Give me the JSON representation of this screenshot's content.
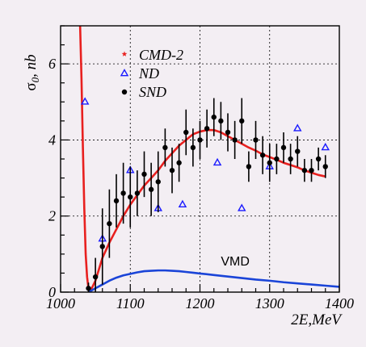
{
  "chart_data": {
    "type": "scatter",
    "title": "",
    "xlabel": "2E,MeV",
    "ylabel_main": "σ",
    "ylabel_sub": "0",
    "ylabel_unit": ", nb",
    "xlim": [
      1000,
      1400
    ],
    "ylim": [
      0,
      7
    ],
    "x_ticks": [
      1000,
      1100,
      1200,
      1300,
      1400
    ],
    "y_ticks": [
      0,
      2,
      4,
      6
    ],
    "grid": true,
    "legend_position": "top-left",
    "annotations": [
      {
        "text": "VMD",
        "x": 1230,
        "y": 0.7
      }
    ],
    "series": [
      {
        "name": "CMD-2",
        "kind": "points",
        "marker": "star",
        "color": "#e8201f",
        "points": []
      },
      {
        "name": "ND",
        "kind": "points",
        "marker": "open-triangle",
        "color": "#1a1aff",
        "points": [
          {
            "x": 1035,
            "y": 5.0
          },
          {
            "x": 1060,
            "y": 1.4
          },
          {
            "x": 1100,
            "y": 3.2
          },
          {
            "x": 1140,
            "y": 2.2
          },
          {
            "x": 1175,
            "y": 2.3
          },
          {
            "x": 1225,
            "y": 3.4
          },
          {
            "x": 1260,
            "y": 2.2
          },
          {
            "x": 1300,
            "y": 3.3
          },
          {
            "x": 1340,
            "y": 4.3
          },
          {
            "x": 1380,
            "y": 3.8
          }
        ]
      },
      {
        "name": "SND",
        "kind": "points",
        "marker": "filled-circle",
        "color": "#000000",
        "points": [
          {
            "x": 1040,
            "y": 0.1,
            "err": 0.15
          },
          {
            "x": 1050,
            "y": 0.4,
            "err": 0.5
          },
          {
            "x": 1060,
            "y": 1.2,
            "err": 1.0
          },
          {
            "x": 1070,
            "y": 1.8,
            "err": 0.9
          },
          {
            "x": 1080,
            "y": 2.4,
            "err": 0.7
          },
          {
            "x": 1090,
            "y": 2.6,
            "err": 0.8
          },
          {
            "x": 1100,
            "y": 2.5,
            "err": 0.8
          },
          {
            "x": 1110,
            "y": 2.6,
            "err": 0.6
          },
          {
            "x": 1120,
            "y": 3.1,
            "err": 0.6
          },
          {
            "x": 1130,
            "y": 2.7,
            "err": 0.7
          },
          {
            "x": 1140,
            "y": 2.9,
            "err": 0.8
          },
          {
            "x": 1150,
            "y": 3.8,
            "err": 0.5
          },
          {
            "x": 1160,
            "y": 3.2,
            "err": 0.6
          },
          {
            "x": 1170,
            "y": 3.4,
            "err": 0.5
          },
          {
            "x": 1180,
            "y": 4.2,
            "err": 0.6
          },
          {
            "x": 1190,
            "y": 3.8,
            "err": 0.5
          },
          {
            "x": 1200,
            "y": 4.0,
            "err": 0.5
          },
          {
            "x": 1210,
            "y": 4.3,
            "err": 0.5
          },
          {
            "x": 1220,
            "y": 4.6,
            "err": 0.5
          },
          {
            "x": 1230,
            "y": 4.5,
            "err": 0.5
          },
          {
            "x": 1240,
            "y": 4.2,
            "err": 0.5
          },
          {
            "x": 1250,
            "y": 4.0,
            "err": 0.5
          },
          {
            "x": 1260,
            "y": 4.5,
            "err": 0.6
          },
          {
            "x": 1270,
            "y": 3.3,
            "err": 0.4
          },
          {
            "x": 1280,
            "y": 4.0,
            "err": 0.5
          },
          {
            "x": 1290,
            "y": 3.6,
            "err": 0.5
          },
          {
            "x": 1300,
            "y": 3.4,
            "err": 0.5
          },
          {
            "x": 1310,
            "y": 3.5,
            "err": 0.4
          },
          {
            "x": 1320,
            "y": 3.8,
            "err": 0.4
          },
          {
            "x": 1330,
            "y": 3.5,
            "err": 0.4
          },
          {
            "x": 1340,
            "y": 3.7,
            "err": 0.4
          },
          {
            "x": 1350,
            "y": 3.2,
            "err": 0.3
          },
          {
            "x": 1360,
            "y": 3.2,
            "err": 0.3
          },
          {
            "x": 1370,
            "y": 3.5,
            "err": 0.3
          },
          {
            "x": 1380,
            "y": 3.3,
            "err": 0.3
          }
        ]
      },
      {
        "kind": "line",
        "color": "#e8201f",
        "width": 2.6,
        "x": [
          1028,
          1030,
          1032,
          1034,
          1036,
          1038,
          1040,
          1042,
          1044,
          1046,
          1050,
          1055,
          1060,
          1070,
          1080,
          1090,
          1100,
          1110,
          1120,
          1130,
          1140,
          1150,
          1160,
          1170,
          1180,
          1190,
          1200,
          1210,
          1220,
          1230,
          1240,
          1250,
          1260,
          1270,
          1280,
          1290,
          1300,
          1310,
          1320,
          1330,
          1340,
          1350,
          1360,
          1370,
          1380
        ],
        "y": [
          7.0,
          5.6,
          3.8,
          2.2,
          1.0,
          0.4,
          0.1,
          0.05,
          0.08,
          0.15,
          0.3,
          0.6,
          0.9,
          1.3,
          1.65,
          2.0,
          2.3,
          2.55,
          2.8,
          3.0,
          3.2,
          3.45,
          3.65,
          3.85,
          4.0,
          4.15,
          4.22,
          4.26,
          4.26,
          4.2,
          4.1,
          4.0,
          3.9,
          3.8,
          3.72,
          3.62,
          3.55,
          3.48,
          3.4,
          3.34,
          3.28,
          3.2,
          3.14,
          3.08,
          3.04
        ]
      },
      {
        "kind": "line",
        "color": "#1a44d8",
        "width": 2.6,
        "x": [
          1040,
          1050,
          1060,
          1070,
          1080,
          1090,
          1100,
          1110,
          1120,
          1130,
          1140,
          1150,
          1160,
          1170,
          1180,
          1190,
          1200,
          1220,
          1240,
          1260,
          1280,
          1300,
          1320,
          1340,
          1360,
          1380,
          1400
        ],
        "y": [
          0.0,
          0.1,
          0.2,
          0.3,
          0.38,
          0.44,
          0.48,
          0.52,
          0.55,
          0.56,
          0.57,
          0.57,
          0.56,
          0.55,
          0.53,
          0.51,
          0.49,
          0.45,
          0.41,
          0.37,
          0.33,
          0.3,
          0.26,
          0.23,
          0.2,
          0.17,
          0.14
        ]
      }
    ]
  }
}
